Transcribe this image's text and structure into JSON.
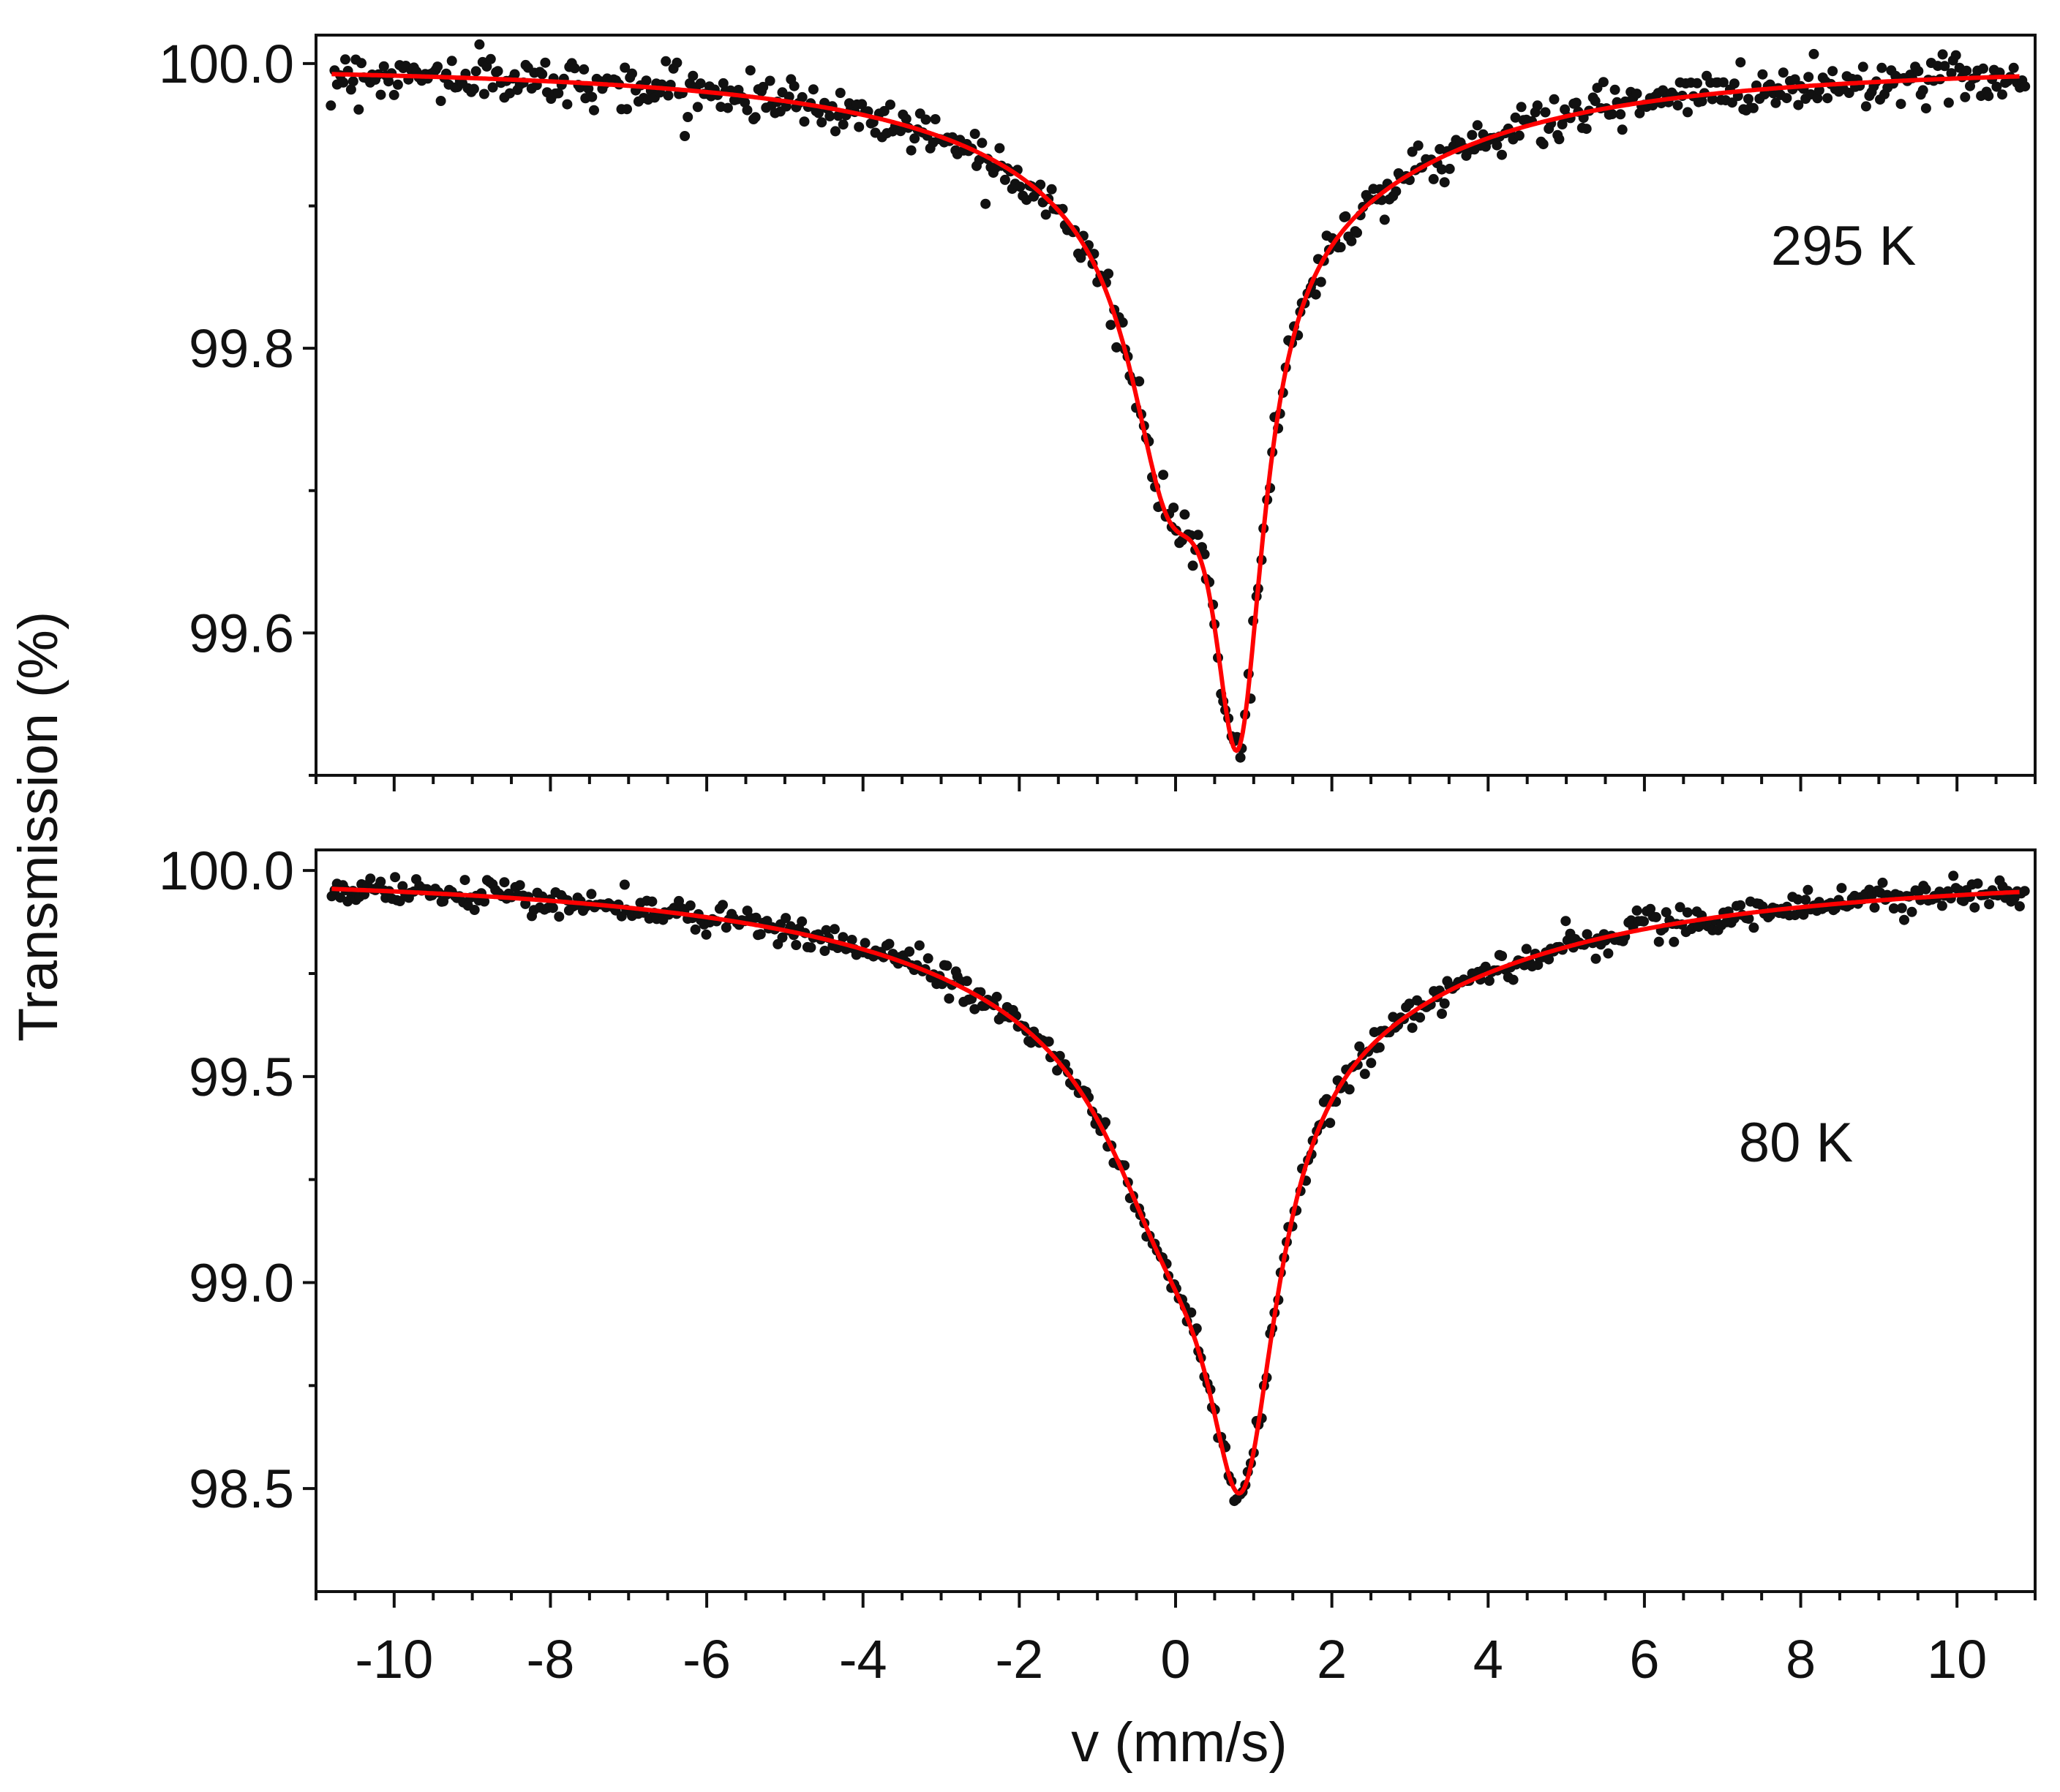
{
  "chart_data": [
    {
      "type": "scatter",
      "panel": "top",
      "annotation": "295 K",
      "xlim": [
        -11,
        11
      ],
      "ylim": [
        99.5,
        100.02
      ],
      "y_major_ticks": [
        100.0,
        99.8,
        99.6
      ],
      "y_tick_labels": [
        "100.0",
        "99.8",
        "99.6"
      ],
      "y_minor_ticks": [
        99.9,
        99.7,
        99.5
      ],
      "x_tick_labels_shown": false,
      "series": [
        {
          "name": "data",
          "style": "points",
          "color": "#111111",
          "noise_sd": 0.008,
          "point_step": 0.035
        },
        {
          "name": "fit",
          "style": "line",
          "color": "#ff0000",
          "model": {
            "baseline": 100.0,
            "components": [
              {
                "center": 0.8,
                "depth": 0.33,
                "hwhm": 0.4
              },
              {
                "center": -0.1,
                "depth": 0.17,
                "hwhm": 0.6
              },
              {
                "center": 0.6,
                "depth": 0.1,
                "hwhm": 3.0
              }
            ]
          }
        }
      ]
    },
    {
      "type": "scatter",
      "panel": "bottom",
      "annotation": "80 K",
      "xlim": [
        -11,
        11
      ],
      "ylim": [
        98.25,
        100.05
      ],
      "y_major_ticks": [
        100.0,
        99.5,
        99.0,
        98.5
      ],
      "y_tick_labels": [
        "100.0",
        "99.5",
        "99.0",
        "98.5"
      ],
      "y_minor_ticks": [
        99.75,
        99.25,
        98.75
      ],
      "x_ticks": [
        -10,
        -8,
        -6,
        -4,
        -2,
        0,
        2,
        4,
        6,
        8,
        10
      ],
      "x_tick_labels": [
        "-10",
        "-8",
        "-6",
        "-4",
        "-2",
        "0",
        "2",
        "4",
        "6",
        "8",
        "10"
      ],
      "xlabel": "v (mm/s)",
      "series": [
        {
          "name": "data",
          "style": "points",
          "color": "#111111",
          "noise_sd": 0.018,
          "point_step": 0.035
        },
        {
          "name": "fit",
          "style": "line",
          "color": "#ff0000",
          "model": {
            "baseline": 100.0,
            "components": [
              {
                "center": 0.85,
                "depth": 0.95,
                "hwhm": 0.55
              },
              {
                "center": -0.1,
                "depth": 0.4,
                "hwhm": 1.0
              },
              {
                "center": 0.5,
                "depth": 0.35,
                "hwhm": 4.0
              }
            ]
          }
        }
      ]
    }
  ],
  "shared": {
    "ylabel": "Transmission (%)",
    "xlabel": "v (mm/s)"
  }
}
